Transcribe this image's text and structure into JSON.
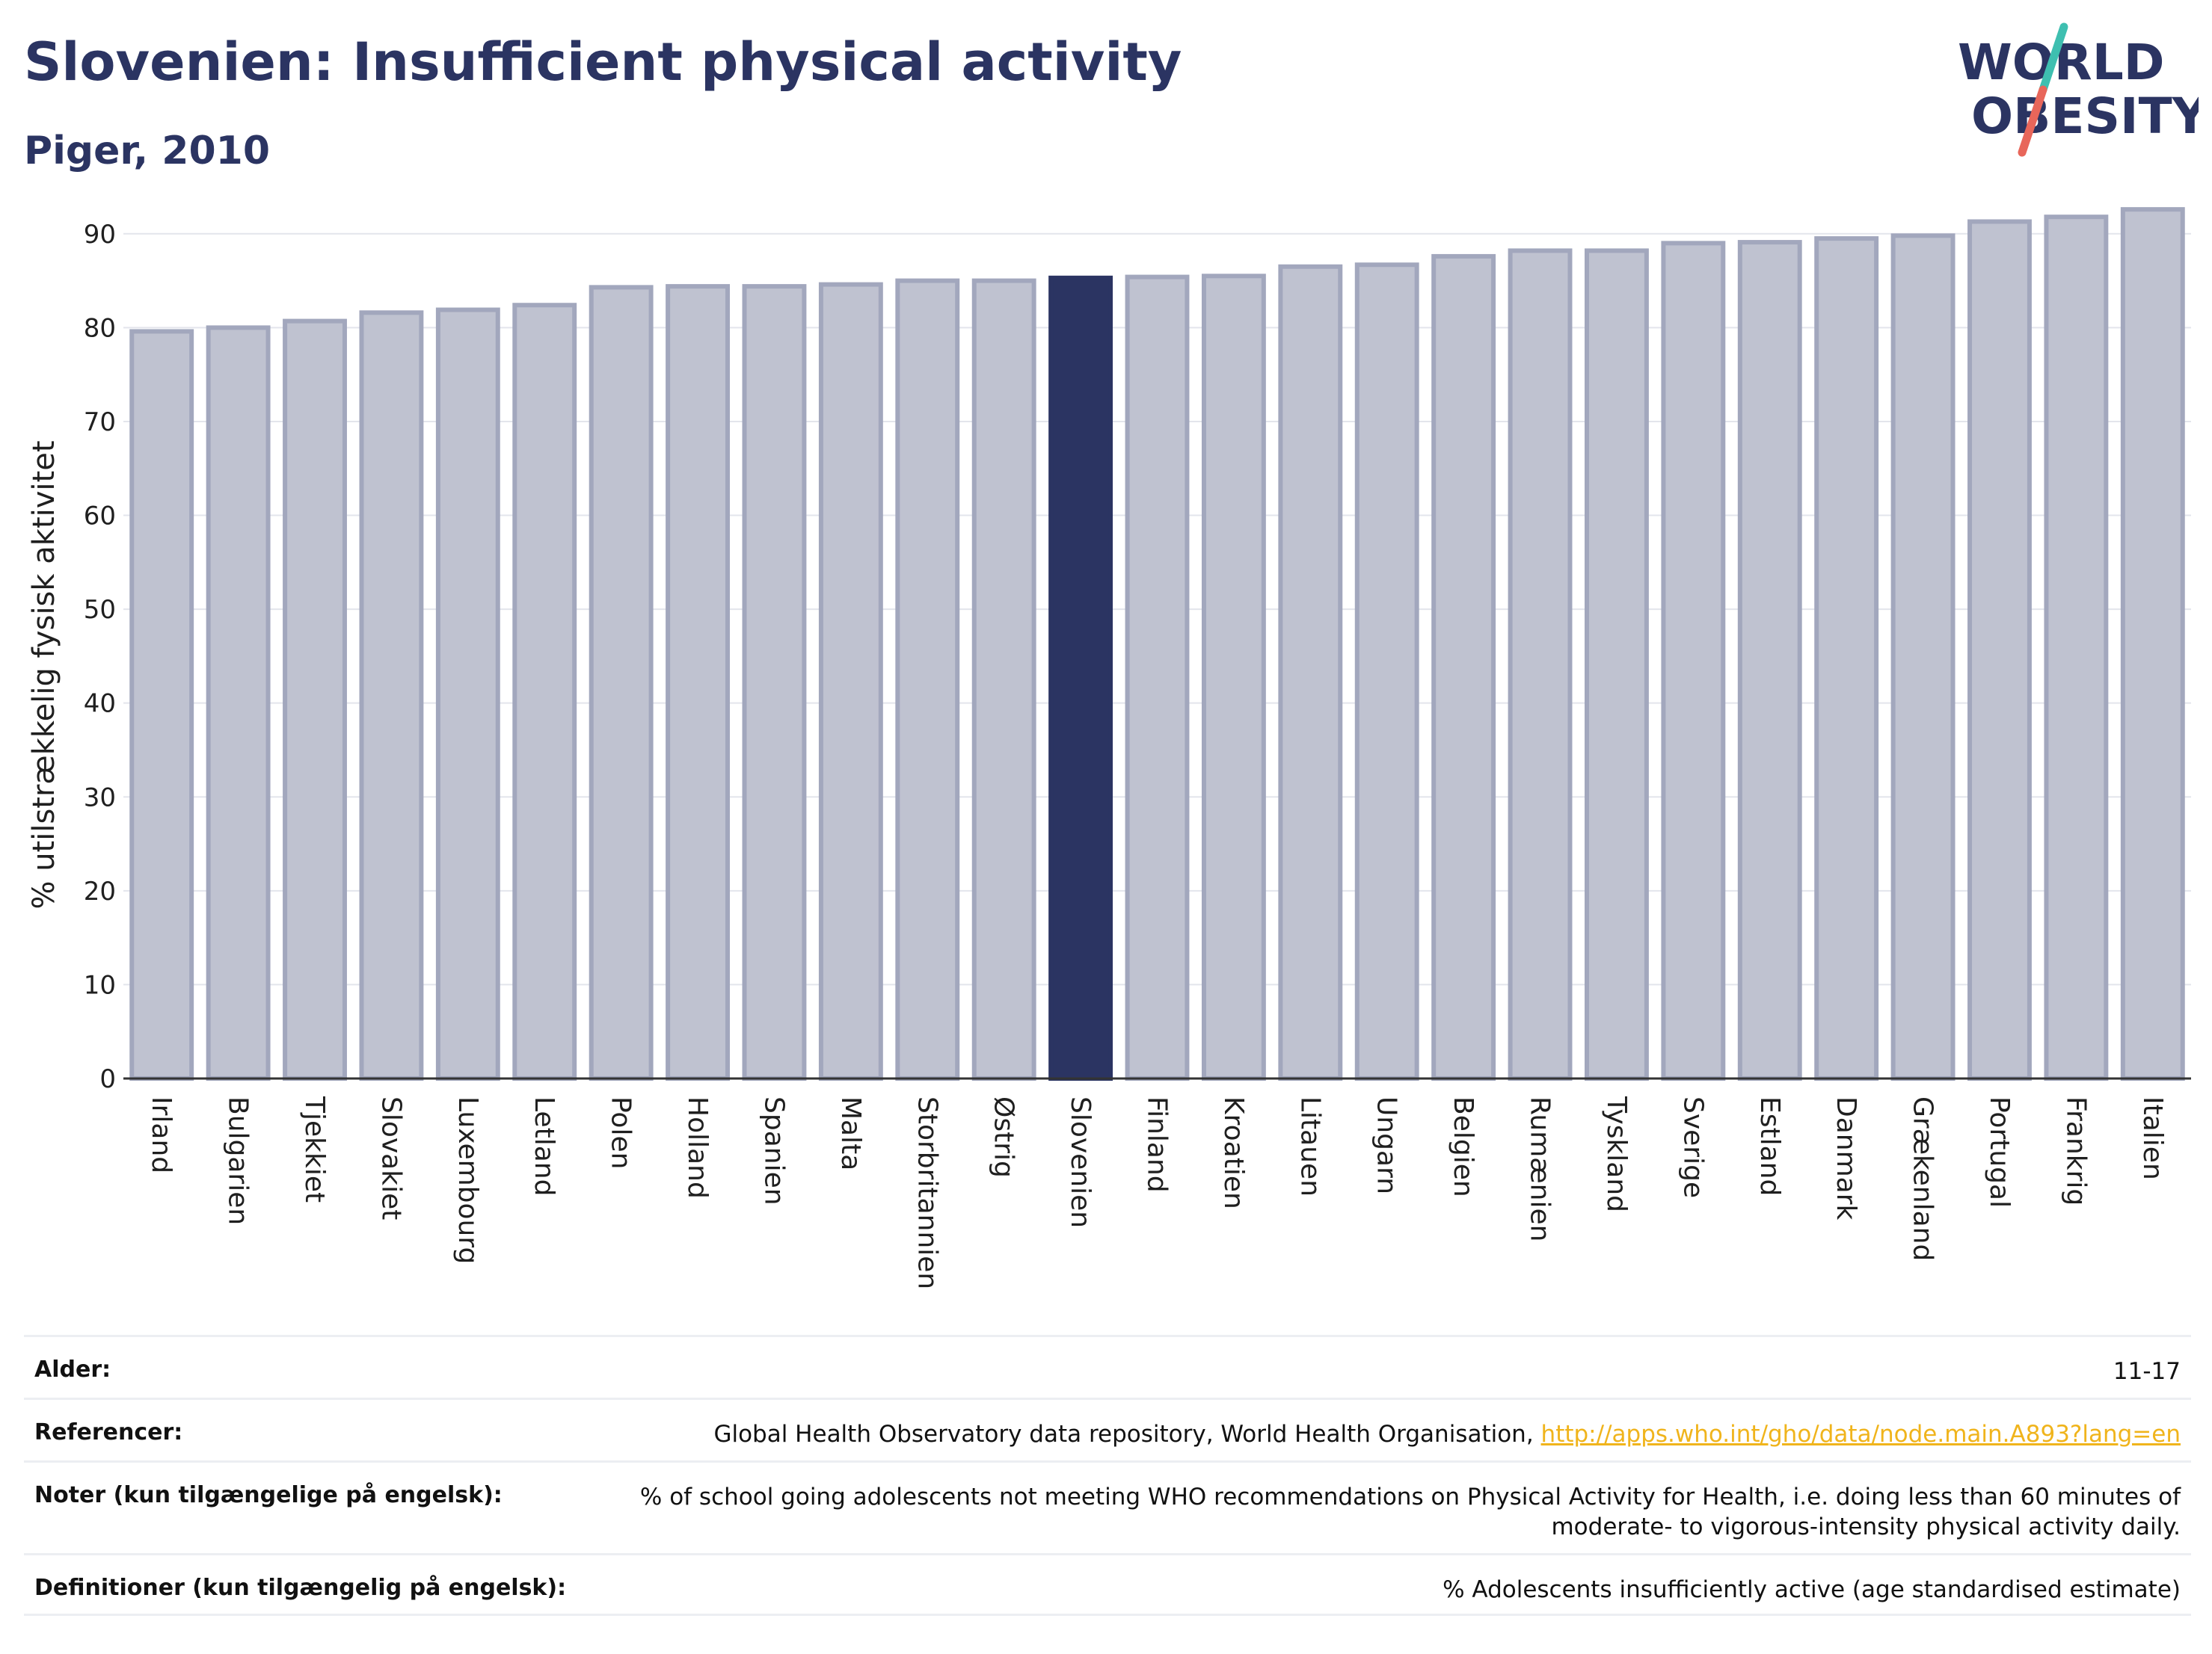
{
  "header": {
    "title": "Slovenien: Insufficient physical activity",
    "subtitle": "Piger, 2010"
  },
  "logo": {
    "line1": "WORLD",
    "line2": "OBESITY",
    "slash_colors": [
      "#3ebfb0",
      "#e8665a"
    ]
  },
  "colors": {
    "bar_default": "#bfc2d0",
    "bar_border": "#a2a7bd",
    "bar_highlight": "#2b3462",
    "title": "#2b3462",
    "link": "#f0b41c"
  },
  "chart_data": {
    "type": "bar",
    "ylabel": "% utilstrækkelig fysisk aktivitet",
    "xlabel": "",
    "ylim": [
      0,
      95
    ],
    "yticks": [
      0,
      10,
      20,
      30,
      40,
      50,
      60,
      70,
      80,
      90
    ],
    "grid": true,
    "highlight": "Slovenien",
    "categories": [
      "Irland",
      "Bulgarien",
      "Tjekkiet",
      "Slovakiet",
      "Luxembourg",
      "Letland",
      "Polen",
      "Holland",
      "Spanien",
      "Malta",
      "Storbritannien",
      "Østrig",
      "Slovenien",
      "Finland",
      "Kroatien",
      "Litauen",
      "Ungarn",
      "Belgien",
      "Rumænien",
      "Tyskland",
      "Sverige",
      "Estland",
      "Danmark",
      "Grækenland",
      "Portugal",
      "Frankrig",
      "Italien"
    ],
    "values": [
      79.6,
      80.0,
      80.7,
      81.6,
      81.9,
      82.4,
      84.3,
      84.4,
      84.4,
      84.6,
      85.0,
      85.0,
      85.3,
      85.4,
      85.5,
      86.5,
      86.7,
      87.6,
      88.2,
      88.2,
      89.0,
      89.1,
      89.5,
      89.8,
      91.3,
      91.8,
      92.6
    ]
  },
  "info": {
    "rows": [
      {
        "label": "Alder:",
        "value": "11-17",
        "link": ""
      },
      {
        "label": "Referencer:",
        "value": "Global Health Observatory data repository, World Health Organisation, ",
        "link": "http://apps.who.int/gho/data/node.main.A893?lang=en"
      },
      {
        "label": "Noter (kun tilgængelige på engelsk):",
        "value": "% of school going adolescents not meeting WHO recommendations on Physical Activity for Health, i.e. doing less than 60 minutes of moderate- to vigorous-intensity physical activity daily.",
        "link": ""
      },
      {
        "label": "Definitioner (kun tilgængelig på engelsk):",
        "value": "% Adolescents insufficiently active (age standardised estimate)",
        "link": ""
      }
    ]
  }
}
